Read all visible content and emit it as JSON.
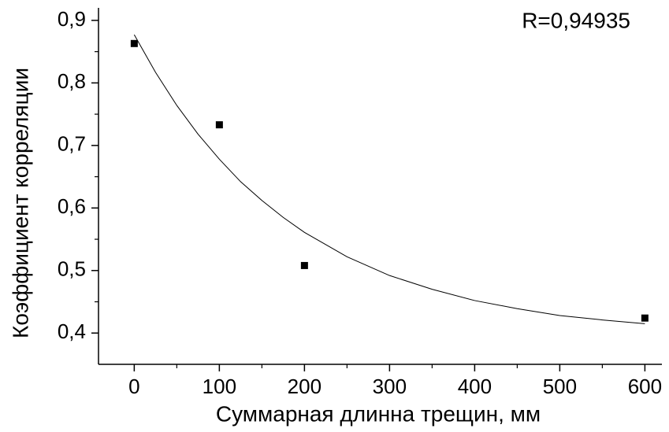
{
  "chart_data": {
    "type": "scatter",
    "x_label": "Суммарная длинна трещин, мм",
    "y_label": "Коэффициент корреляции",
    "annotation": "R=0,94935",
    "series": [
      {
        "kind": "points",
        "color": "#000000",
        "x": [
          0,
          100,
          200,
          600
        ],
        "values": [
          0.863,
          0.733,
          0.508,
          0.424
        ]
      },
      {
        "kind": "fit",
        "color": "#000000",
        "x": [
          0,
          25,
          50,
          75,
          100,
          125,
          150,
          175,
          200,
          250,
          300,
          350,
          400,
          450,
          500,
          550,
          600
        ],
        "values": [
          0.877,
          0.817,
          0.764,
          0.718,
          0.678,
          0.642,
          0.612,
          0.585,
          0.561,
          0.522,
          0.492,
          0.47,
          0.452,
          0.439,
          0.428,
          0.421,
          0.415
        ]
      }
    ],
    "xlim": [
      -42,
      620
    ],
    "ylim": [
      0.35,
      0.92
    ],
    "xticks": [
      0,
      100,
      200,
      300,
      400,
      500,
      600
    ],
    "xminorticks": [
      50,
      150,
      250,
      350,
      450,
      550
    ],
    "yticks": [
      {
        "value": 0.4,
        "label": "0,4"
      },
      {
        "value": 0.5,
        "label": "0,5"
      },
      {
        "value": 0.6,
        "label": "0,6"
      },
      {
        "value": 0.7,
        "label": "0,7"
      },
      {
        "value": 0.8,
        "label": "0,8"
      },
      {
        "value": 0.9,
        "label": "0,9"
      }
    ],
    "yminorticks": [
      0.45,
      0.55,
      0.65,
      0.75,
      0.85
    ],
    "grid": false
  }
}
